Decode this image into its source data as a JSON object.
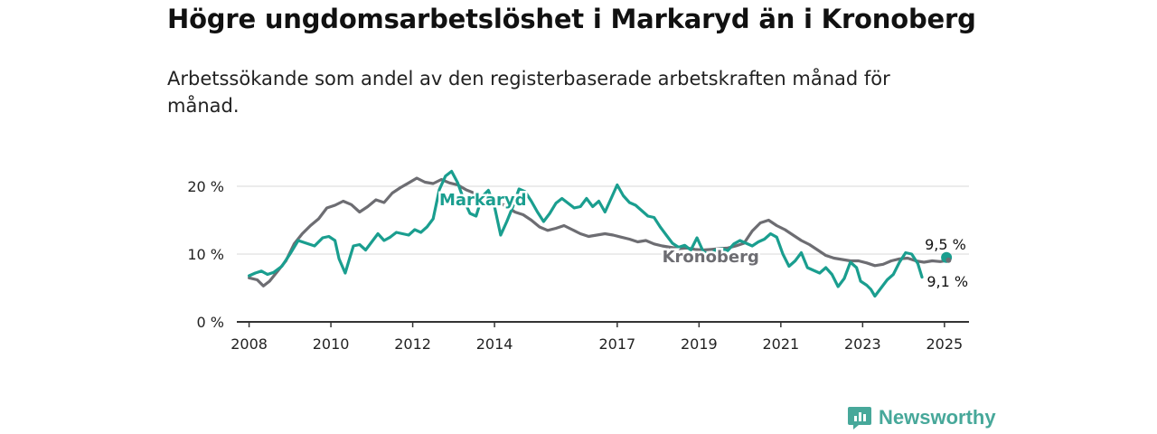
{
  "title": "Högre ungdomsarbetslöshet i Markaryd än i Kronoberg",
  "subtitle": "Arbetssökande som andel av den registerbaserade arbetskraften månad för månad.",
  "brand": "Newsworthy",
  "colors": {
    "markaryd": "#1a9e8f",
    "kronoberg": "#6d6d72",
    "grid": "#d9d9d9",
    "axis": "#333333"
  },
  "chart_data": {
    "type": "line",
    "x_unit": "year",
    "xlim": [
      2007.7,
      2025.6
    ],
    "ylim": [
      0,
      20
    ],
    "yticks": [
      {
        "value": 0,
        "label": "0 %"
      },
      {
        "value": 10,
        "label": "10 %"
      },
      {
        "value": 20,
        "label": "20 %"
      }
    ],
    "xticks": [
      "2008",
      "2010",
      "2012",
      "2014",
      "2017",
      "2019",
      "2021",
      "2023",
      "2025"
    ],
    "series": [
      {
        "name": "Kronoberg",
        "color": "#6d6d72",
        "points": [
          [
            2008.0,
            6.5
          ],
          [
            2008.2,
            6.2
          ],
          [
            2008.35,
            5.3
          ],
          [
            2008.5,
            6.0
          ],
          [
            2008.7,
            7.5
          ],
          [
            2008.9,
            9.0
          ],
          [
            2009.1,
            11.5
          ],
          [
            2009.3,
            13.0
          ],
          [
            2009.5,
            14.2
          ],
          [
            2009.7,
            15.2
          ],
          [
            2009.9,
            16.8
          ],
          [
            2010.1,
            17.2
          ],
          [
            2010.3,
            17.8
          ],
          [
            2010.5,
            17.3
          ],
          [
            2010.7,
            16.2
          ],
          [
            2010.9,
            17.0
          ],
          [
            2011.1,
            18.0
          ],
          [
            2011.3,
            17.6
          ],
          [
            2011.5,
            19.0
          ],
          [
            2011.7,
            19.8
          ],
          [
            2011.9,
            20.5
          ],
          [
            2012.1,
            21.2
          ],
          [
            2012.3,
            20.6
          ],
          [
            2012.5,
            20.4
          ],
          [
            2012.7,
            21.0
          ],
          [
            2012.9,
            20.5
          ],
          [
            2013.1,
            20.2
          ],
          [
            2013.3,
            19.5
          ],
          [
            2013.5,
            19.0
          ],
          [
            2013.7,
            18.5
          ],
          [
            2013.9,
            18.0
          ],
          [
            2014.1,
            17.6
          ],
          [
            2014.3,
            17.0
          ],
          [
            2014.5,
            16.2
          ],
          [
            2014.7,
            15.8
          ],
          [
            2014.9,
            15.0
          ],
          [
            2015.1,
            14.0
          ],
          [
            2015.3,
            13.5
          ],
          [
            2015.5,
            13.8
          ],
          [
            2015.7,
            14.2
          ],
          [
            2015.9,
            13.6
          ],
          [
            2016.1,
            13.0
          ],
          [
            2016.3,
            12.6
          ],
          [
            2016.5,
            12.8
          ],
          [
            2016.7,
            13.0
          ],
          [
            2016.9,
            12.8
          ],
          [
            2017.1,
            12.5
          ],
          [
            2017.3,
            12.2
          ],
          [
            2017.5,
            11.8
          ],
          [
            2017.7,
            12.0
          ],
          [
            2017.9,
            11.5
          ],
          [
            2018.1,
            11.2
          ],
          [
            2018.3,
            11.0
          ],
          [
            2018.5,
            10.8
          ],
          [
            2018.7,
            10.9
          ],
          [
            2018.9,
            10.7
          ],
          [
            2019.1,
            10.6
          ],
          [
            2019.3,
            10.7
          ],
          [
            2019.5,
            10.8
          ],
          [
            2019.7,
            10.9
          ],
          [
            2019.9,
            11.2
          ],
          [
            2020.1,
            11.6
          ],
          [
            2020.3,
            13.4
          ],
          [
            2020.5,
            14.6
          ],
          [
            2020.7,
            15.0
          ],
          [
            2020.9,
            14.2
          ],
          [
            2021.1,
            13.6
          ],
          [
            2021.3,
            12.8
          ],
          [
            2021.5,
            12.0
          ],
          [
            2021.7,
            11.4
          ],
          [
            2021.9,
            10.6
          ],
          [
            2022.1,
            9.8
          ],
          [
            2022.3,
            9.4
          ],
          [
            2022.5,
            9.2
          ],
          [
            2022.7,
            9.0
          ],
          [
            2022.9,
            9.0
          ],
          [
            2023.1,
            8.7
          ],
          [
            2023.3,
            8.3
          ],
          [
            2023.5,
            8.5
          ],
          [
            2023.7,
            9.0
          ],
          [
            2023.9,
            9.3
          ],
          [
            2024.1,
            9.4
          ],
          [
            2024.3,
            9.0
          ],
          [
            2024.5,
            8.8
          ],
          [
            2024.7,
            9.0
          ],
          [
            2024.9,
            8.9
          ],
          [
            2025.1,
            9.1
          ]
        ],
        "end_label": "9,1 %"
      },
      {
        "name": "Markaryd",
        "color": "#1a9e8f",
        "points": [
          [
            2008.0,
            6.8
          ],
          [
            2008.15,
            7.2
          ],
          [
            2008.3,
            7.5
          ],
          [
            2008.45,
            7.0
          ],
          [
            2008.6,
            7.3
          ],
          [
            2008.8,
            8.2
          ],
          [
            2009.0,
            10.0
          ],
          [
            2009.2,
            12.0
          ],
          [
            2009.4,
            11.6
          ],
          [
            2009.6,
            11.2
          ],
          [
            2009.8,
            12.4
          ],
          [
            2009.95,
            12.6
          ],
          [
            2010.1,
            12.0
          ],
          [
            2010.2,
            9.3
          ],
          [
            2010.35,
            7.2
          ],
          [
            2010.45,
            9.2
          ],
          [
            2010.55,
            11.2
          ],
          [
            2010.7,
            11.4
          ],
          [
            2010.85,
            10.6
          ],
          [
            2011.0,
            11.8
          ],
          [
            2011.15,
            13.0
          ],
          [
            2011.3,
            12.0
          ],
          [
            2011.45,
            12.5
          ],
          [
            2011.6,
            13.2
          ],
          [
            2011.75,
            13.0
          ],
          [
            2011.9,
            12.8
          ],
          [
            2012.05,
            13.6
          ],
          [
            2012.2,
            13.2
          ],
          [
            2012.35,
            14.0
          ],
          [
            2012.5,
            15.2
          ],
          [
            2012.65,
            19.5
          ],
          [
            2012.8,
            21.5
          ],
          [
            2012.95,
            22.2
          ],
          [
            2013.1,
            20.5
          ],
          [
            2013.25,
            18.0
          ],
          [
            2013.4,
            16.0
          ],
          [
            2013.55,
            15.6
          ],
          [
            2013.7,
            18.5
          ],
          [
            2013.85,
            19.4
          ],
          [
            2014.0,
            17.0
          ],
          [
            2014.15,
            12.8
          ],
          [
            2014.3,
            14.8
          ],
          [
            2014.45,
            17.0
          ],
          [
            2014.6,
            19.6
          ],
          [
            2014.75,
            19.2
          ],
          [
            2014.9,
            17.8
          ],
          [
            2015.05,
            16.2
          ],
          [
            2015.2,
            14.8
          ],
          [
            2015.35,
            16.0
          ],
          [
            2015.5,
            17.5
          ],
          [
            2015.65,
            18.2
          ],
          [
            2015.8,
            17.5
          ],
          [
            2015.95,
            16.8
          ],
          [
            2016.1,
            17.0
          ],
          [
            2016.25,
            18.2
          ],
          [
            2016.4,
            17.0
          ],
          [
            2016.55,
            17.8
          ],
          [
            2016.7,
            16.2
          ],
          [
            2016.85,
            18.2
          ],
          [
            2017.0,
            20.2
          ],
          [
            2017.15,
            18.6
          ],
          [
            2017.3,
            17.6
          ],
          [
            2017.45,
            17.2
          ],
          [
            2017.6,
            16.4
          ],
          [
            2017.75,
            15.6
          ],
          [
            2017.9,
            15.4
          ],
          [
            2018.05,
            14.0
          ],
          [
            2018.2,
            12.8
          ],
          [
            2018.35,
            11.6
          ],
          [
            2018.5,
            11.0
          ],
          [
            2018.65,
            11.3
          ],
          [
            2018.8,
            10.6
          ],
          [
            2018.95,
            12.4
          ],
          [
            2019.1,
            10.4
          ],
          [
            2019.25,
            9.8
          ],
          [
            2019.4,
            10.6
          ],
          [
            2019.55,
            10.8
          ],
          [
            2019.7,
            10.5
          ],
          [
            2019.85,
            11.5
          ],
          [
            2020.0,
            12.0
          ],
          [
            2020.15,
            11.6
          ],
          [
            2020.3,
            11.2
          ],
          [
            2020.45,
            11.8
          ],
          [
            2020.6,
            12.2
          ],
          [
            2020.75,
            13.0
          ],
          [
            2020.9,
            12.5
          ],
          [
            2021.05,
            10.0
          ],
          [
            2021.2,
            8.2
          ],
          [
            2021.35,
            9.0
          ],
          [
            2021.5,
            10.2
          ],
          [
            2021.65,
            8.0
          ],
          [
            2021.8,
            7.6
          ],
          [
            2021.95,
            7.2
          ],
          [
            2022.1,
            8.0
          ],
          [
            2022.25,
            7.0
          ],
          [
            2022.4,
            5.2
          ],
          [
            2022.55,
            6.4
          ],
          [
            2022.7,
            8.8
          ],
          [
            2022.85,
            8.0
          ],
          [
            2022.95,
            6.0
          ],
          [
            2023.1,
            5.4
          ],
          [
            2023.2,
            4.8
          ],
          [
            2023.3,
            3.8
          ],
          [
            2023.45,
            5.0
          ],
          [
            2023.6,
            6.2
          ],
          [
            2023.75,
            7.0
          ],
          [
            2023.9,
            8.8
          ],
          [
            2024.05,
            10.2
          ],
          [
            2024.2,
            10.0
          ],
          [
            2024.35,
            8.6
          ],
          [
            2024.45,
            6.6
          ]
        ],
        "end_label": "9,5 %",
        "end_value": [
          2025.05,
          9.5
        ]
      }
    ],
    "annotations": [
      {
        "text": "Markaryd",
        "series": "Markaryd"
      },
      {
        "text": "Kronoberg",
        "series": "Kronoberg"
      }
    ]
  }
}
